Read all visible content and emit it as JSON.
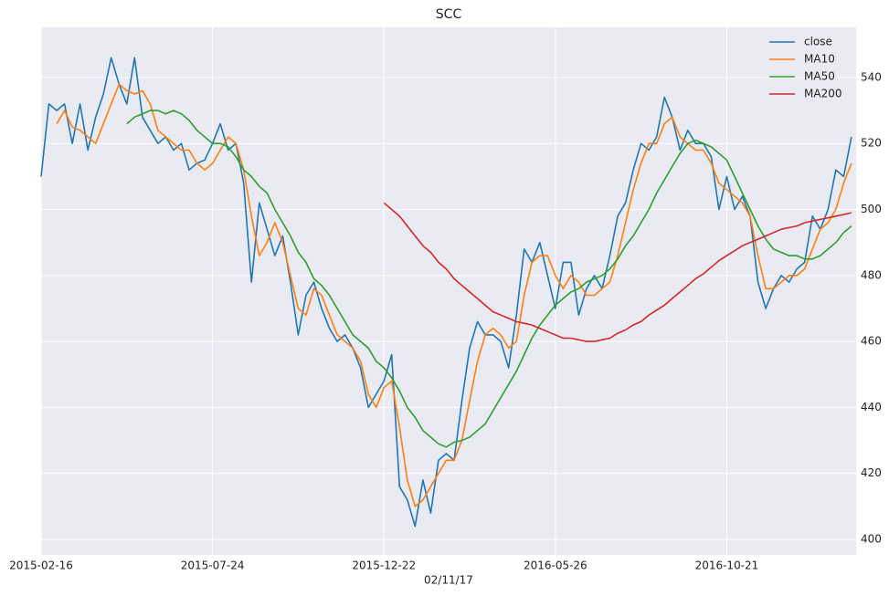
{
  "chart_data": {
    "type": "line",
    "title": "SCC",
    "x_label": "02/11/17",
    "xlim": [
      0,
      104.6
    ],
    "xticks": [
      {
        "value": 0,
        "label": "2015-02-16"
      },
      {
        "value": 22,
        "label": "2015-07-24"
      },
      {
        "value": 44,
        "label": "2015-12-22"
      },
      {
        "value": 66,
        "label": "2016-05-26"
      },
      {
        "value": 88,
        "label": "2016-10-21"
      }
    ],
    "ylim": [
      395.3,
      555.2
    ],
    "yticks": [
      400,
      420,
      440,
      460,
      480,
      500,
      520,
      540
    ],
    "grid": true,
    "legend": "upper right",
    "series": [
      {
        "name": "close",
        "color": "#1f77b4",
        "values": [
          510,
          532,
          530,
          532,
          520,
          532,
          518,
          528,
          535,
          546,
          538,
          532,
          546,
          528,
          524,
          520,
          522,
          518,
          520,
          512,
          514,
          515,
          520,
          526,
          518,
          520,
          508,
          478,
          502,
          494,
          486,
          492,
          478,
          462,
          474,
          478,
          470,
          464,
          460,
          462,
          458,
          452,
          440,
          444,
          448,
          456,
          416,
          412,
          404,
          418,
          408,
          424,
          426,
          424,
          442,
          458,
          466,
          462,
          462,
          460,
          452,
          468,
          488,
          484,
          490,
          480,
          470,
          484,
          484,
          468,
          476,
          480,
          476,
          486,
          498,
          502,
          512,
          520,
          518,
          522,
          534,
          528,
          518,
          524,
          520,
          520,
          516,
          500,
          510,
          500,
          504,
          498,
          478,
          470,
          476,
          480,
          478,
          482,
          484,
          498,
          494,
          500,
          512,
          510,
          522
        ]
      },
      {
        "name": "MA10",
        "color": "#ff7f0e",
        "values": [
          null,
          null,
          526,
          530,
          525,
          524,
          522,
          520,
          526,
          532,
          538,
          536,
          535,
          536,
          532,
          524,
          522,
          520,
          518,
          518,
          514,
          512,
          514,
          518,
          522,
          520,
          512,
          498,
          486,
          490,
          496,
          490,
          480,
          470,
          468,
          476,
          474,
          468,
          462,
          460,
          458,
          454,
          444,
          440,
          446,
          448,
          434,
          418,
          410,
          412,
          416,
          420,
          424,
          424,
          430,
          442,
          454,
          462,
          464,
          462,
          458,
          460,
          474,
          484,
          486,
          486,
          480,
          476,
          480,
          478,
          474,
          474,
          476,
          478,
          486,
          496,
          506,
          514,
          520,
          520,
          526,
          528,
          522,
          520,
          518,
          518,
          514,
          508,
          506,
          504,
          502,
          498,
          486,
          476,
          476,
          478,
          480,
          480,
          482,
          488,
          494,
          496,
          500,
          508,
          514
        ]
      },
      {
        "name": "MA50",
        "color": "#2ca02c",
        "values": [
          null,
          null,
          null,
          null,
          null,
          null,
          null,
          null,
          null,
          null,
          null,
          526,
          528,
          529,
          530,
          530,
          529,
          530,
          529,
          527,
          524,
          522,
          520,
          520,
          519,
          516,
          512,
          510,
          507,
          505,
          500,
          496,
          492,
          487,
          484,
          479,
          477,
          474,
          470,
          466,
          462,
          460,
          458,
          454,
          452,
          449,
          445,
          440,
          437,
          433,
          431,
          429,
          428,
          429.5,
          430,
          431,
          433,
          435,
          439,
          443,
          447,
          451,
          456,
          461,
          465,
          468,
          471,
          473,
          475,
          476,
          478,
          479,
          480,
          482,
          485,
          489,
          492,
          496,
          500,
          505,
          509,
          513,
          517,
          520,
          521,
          520,
          519,
          517,
          515,
          510,
          505,
          500,
          495,
          491,
          488,
          487,
          486,
          486,
          485,
          485,
          486,
          488,
          490,
          493,
          495
        ]
      },
      {
        "name": "MA200",
        "color": "#d62728",
        "values": [
          null,
          null,
          null,
          null,
          null,
          null,
          null,
          null,
          null,
          null,
          null,
          null,
          null,
          null,
          null,
          null,
          null,
          null,
          null,
          null,
          null,
          null,
          null,
          null,
          null,
          null,
          null,
          null,
          null,
          null,
          null,
          null,
          null,
          null,
          null,
          null,
          null,
          null,
          null,
          null,
          null,
          null,
          null,
          null,
          502,
          500,
          498,
          495,
          492,
          489,
          487,
          484,
          482,
          479,
          477,
          475,
          473,
          471,
          469,
          468,
          467,
          466,
          465.5,
          465,
          464,
          463,
          462,
          461,
          461,
          460.5,
          460,
          460,
          460.5,
          461,
          462.5,
          463.5,
          465,
          466,
          468,
          469.5,
          471,
          473,
          475,
          477,
          479,
          480.5,
          482.5,
          484.5,
          486,
          487.5,
          489,
          490,
          491,
          492,
          493,
          494,
          494.5,
          495,
          496,
          496.5,
          497,
          497.5,
          498,
          498.5,
          499
        ]
      }
    ]
  }
}
